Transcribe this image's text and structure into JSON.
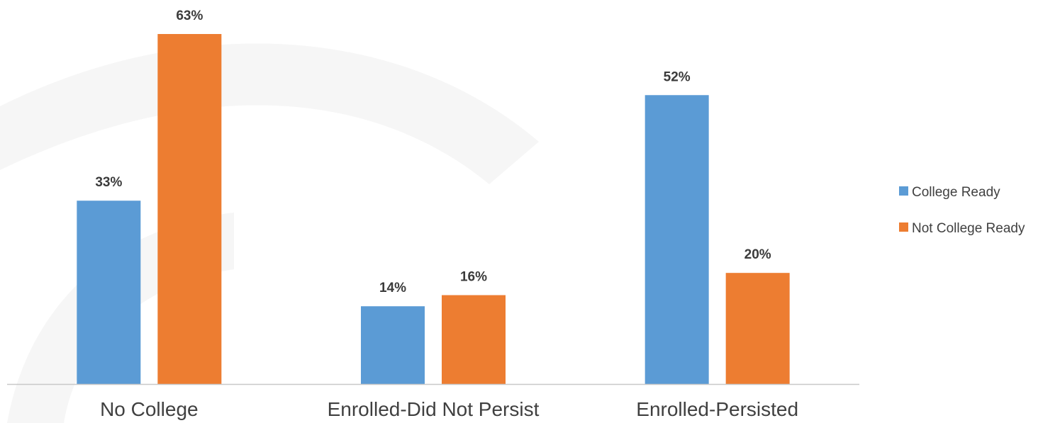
{
  "chart_data": {
    "type": "bar",
    "categories": [
      "No College",
      "Enrolled-Did Not Persist",
      "Enrolled-Persisted"
    ],
    "series": [
      {
        "name": "College Ready",
        "values": [
          33,
          14,
          52
        ],
        "labels": [
          "33%",
          "14%",
          "52%"
        ],
        "color": "#5b9bd5"
      },
      {
        "name": "Not College Ready",
        "values": [
          63,
          16,
          20
        ],
        "labels": [
          "63%",
          "16%",
          "20%"
        ],
        "color": "#ed7d31"
      }
    ],
    "ylim": [
      0,
      70
    ],
    "legend_position": "right",
    "grid": false,
    "title": "",
    "xlabel": "",
    "ylabel": ""
  },
  "colors": {
    "axis": "#c8c8c8",
    "watermark": "#f5f5f5"
  }
}
